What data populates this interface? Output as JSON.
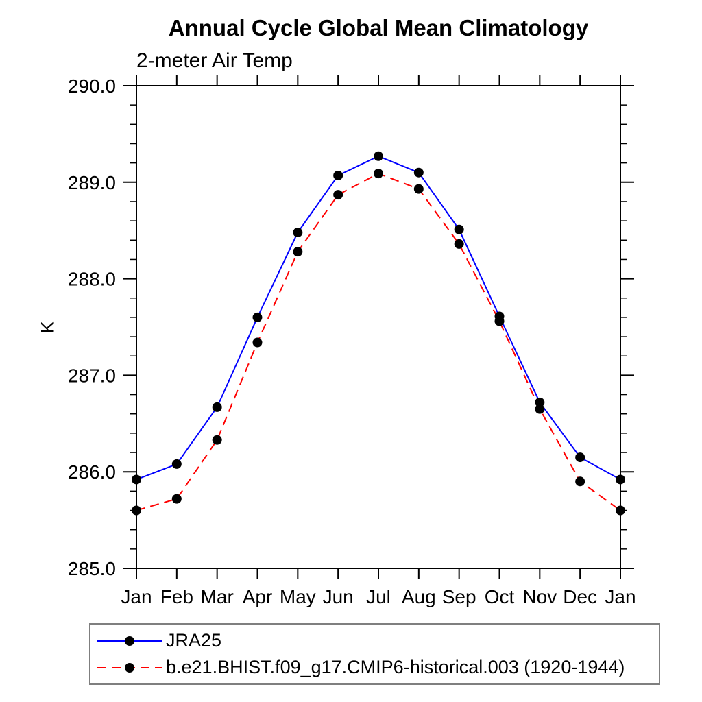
{
  "header": {
    "title": "Annual Cycle Global Mean Climatology",
    "subtitle": "2-meter Air Temp"
  },
  "chart_data": {
    "type": "line",
    "title": "Annual Cycle Global Mean Climatology",
    "subtitle": "2-meter Air Temp",
    "xlabel": "",
    "ylabel": "K",
    "x_tick_labels": [
      "Jan",
      "Feb",
      "Mar",
      "Apr",
      "May",
      "Jun",
      "Jul",
      "Aug",
      "Sep",
      "Oct",
      "Nov",
      "Dec",
      "Jan"
    ],
    "ylim": [
      285.0,
      290.0
    ],
    "y_major_step": 1.0,
    "y_minor_step": 0.2,
    "y_tick_format": "one_decimal",
    "grid": false,
    "frame_color": "#000000",
    "legend_position": "bottom-left-outside",
    "series": [
      {
        "name": "JRA25",
        "color": "#0000ff",
        "dash": "solid",
        "marker": "circle",
        "marker_color": "#000000",
        "values": [
          285.92,
          286.08,
          286.67,
          287.6,
          288.48,
          289.07,
          289.27,
          289.1,
          288.51,
          287.61,
          286.72,
          286.15,
          285.92
        ]
      },
      {
        "name": "b.e21.BHIST.f09_g17.CMIP6-historical.003 (1920-1944)",
        "color": "#ff0000",
        "dash": "dashed",
        "marker": "circle",
        "marker_color": "#000000",
        "values": [
          285.6,
          285.72,
          286.33,
          287.34,
          288.28,
          288.87,
          289.09,
          288.93,
          288.36,
          287.56,
          286.65,
          285.9,
          285.6
        ]
      }
    ]
  }
}
